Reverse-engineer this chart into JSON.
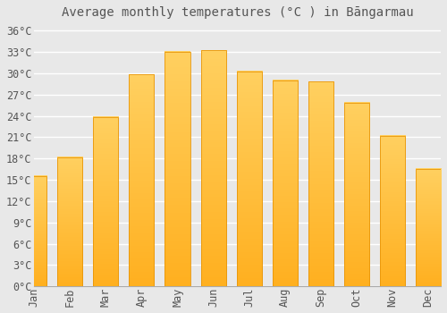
{
  "title": "Average monthly temperatures (°C ) in Bāngarmau",
  "months": [
    "Jan",
    "Feb",
    "Mar",
    "Apr",
    "May",
    "Jun",
    "Jul",
    "Aug",
    "Sep",
    "Oct",
    "Nov",
    "Dec"
  ],
  "values": [
    15.5,
    18.2,
    23.8,
    29.8,
    33.0,
    33.2,
    30.3,
    29.0,
    28.8,
    25.8,
    21.2,
    16.5
  ],
  "bar_color_top": "#FFC020",
  "bar_color_bottom": "#FFB040",
  "bar_edge_color": "#E8960A",
  "background_color": "#e8e8e8",
  "plot_bg_color": "#e8e8e8",
  "grid_color": "#ffffff",
  "text_color": "#555555",
  "ylim": [
    0,
    37
  ],
  "yticks": [
    0,
    3,
    6,
    9,
    12,
    15,
    18,
    21,
    24,
    27,
    30,
    33,
    36
  ],
  "ytick_labels": [
    "0°C",
    "3°C",
    "6°C",
    "9°C",
    "12°C",
    "15°C",
    "18°C",
    "21°C",
    "24°C",
    "27°C",
    "30°C",
    "33°C",
    "36°C"
  ],
  "title_fontsize": 10,
  "tick_fontsize": 8.5,
  "bar_width": 0.7
}
